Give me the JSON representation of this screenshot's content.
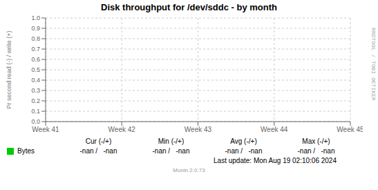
{
  "chart_data": {
    "type": "line",
    "title": "Disk throughput for /dev/sddc - by month",
    "ylabel": "Pr second read (-) / write (+)",
    "categories": [
      "Week 41",
      "Week 42",
      "Week 43",
      "Week 44",
      "Week 45"
    ],
    "series": [
      {
        "name": "Bytes",
        "color": "#00cc00",
        "values": [
          null,
          null,
          null,
          null,
          null
        ]
      }
    ],
    "ylim": [
      0.0,
      1.0
    ],
    "yticks": [
      {
        "value": 0.0,
        "label": "0.0"
      },
      0.1,
      0.2,
      0.3,
      0.4,
      0.5,
      0.6,
      0.7,
      0.8,
      0.9,
      {
        "value": 1.0,
        "label": "1.0"
      }
    ],
    "grid": true,
    "legend": "bottom",
    "annotations": [
      "Cur (-/+)",
      "Min (-/+)",
      "Avg (-/+)",
      "Max (-/+)",
      "-nan /",
      "-nan",
      "-nan /",
      "-nan",
      "-nan /",
      "-nan",
      "-nan /",
      "-nan",
      "Last update: Mon Aug 19 02:10:06 2024",
      "Munin 2.0.73",
      "RRDTOOL / TOBI OETIKER"
    ]
  }
}
